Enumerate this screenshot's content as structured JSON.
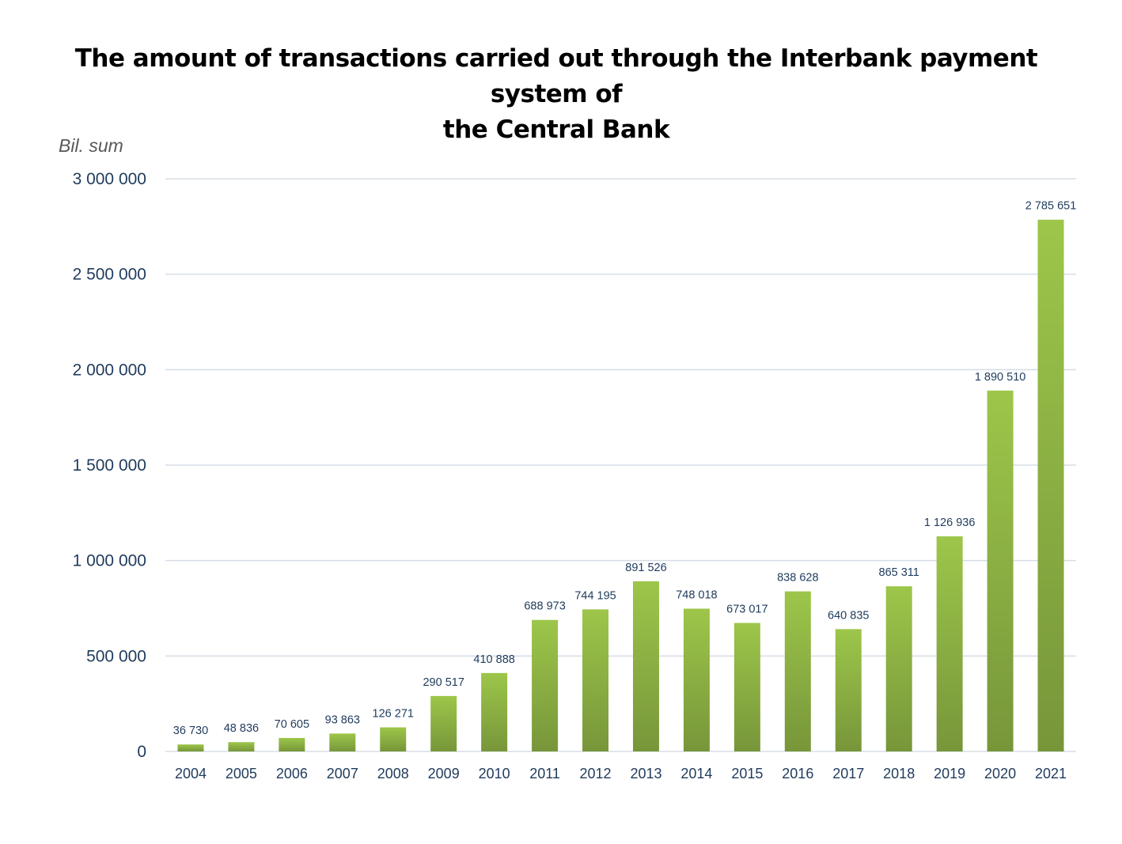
{
  "chart_data": {
    "type": "bar",
    "title": "The amount of transactions carried out through the Interbank payment system of\nthe Central Bank",
    "xlabel": "",
    "ylabel": "Bil. sum",
    "categories": [
      "2004",
      "2005",
      "2006",
      "2007",
      "2008",
      "2009",
      "2010",
      "2011",
      "2012",
      "2013",
      "2014",
      "2015",
      "2016",
      "2017",
      "2018",
      "2019",
      "2020",
      "2021"
    ],
    "values": [
      36730,
      48836,
      70605,
      93863,
      126271,
      290517,
      410888,
      688973,
      744195,
      891526,
      748018,
      673017,
      838628,
      640835,
      865311,
      1126936,
      1890510,
      2785651
    ],
    "value_labels": [
      "36 730",
      "48 836",
      "70 605",
      "93 863",
      "126 271",
      "290 517",
      "410 888",
      "688 973",
      "744 195",
      "891 526",
      "748 018",
      "673 017",
      "838 628",
      "640 835",
      "865 311",
      "1 126 936",
      "1 890 510",
      "2 785 651"
    ],
    "ylim": [
      0,
      3000000
    ],
    "yticks": [
      0,
      500000,
      1000000,
      1500000,
      2000000,
      2500000,
      3000000
    ],
    "ytick_labels": [
      "0",
      "500 000",
      "1 000 000",
      "1 500 000",
      "2 000 000",
      "2 500 000",
      "3 000 000"
    ],
    "grid": true,
    "legend": "none",
    "colors": {
      "bar_top": "#9dc64a",
      "bar_bottom": "#77963a",
      "grid": "#d5dde6",
      "text": "#1f3b5c"
    }
  }
}
